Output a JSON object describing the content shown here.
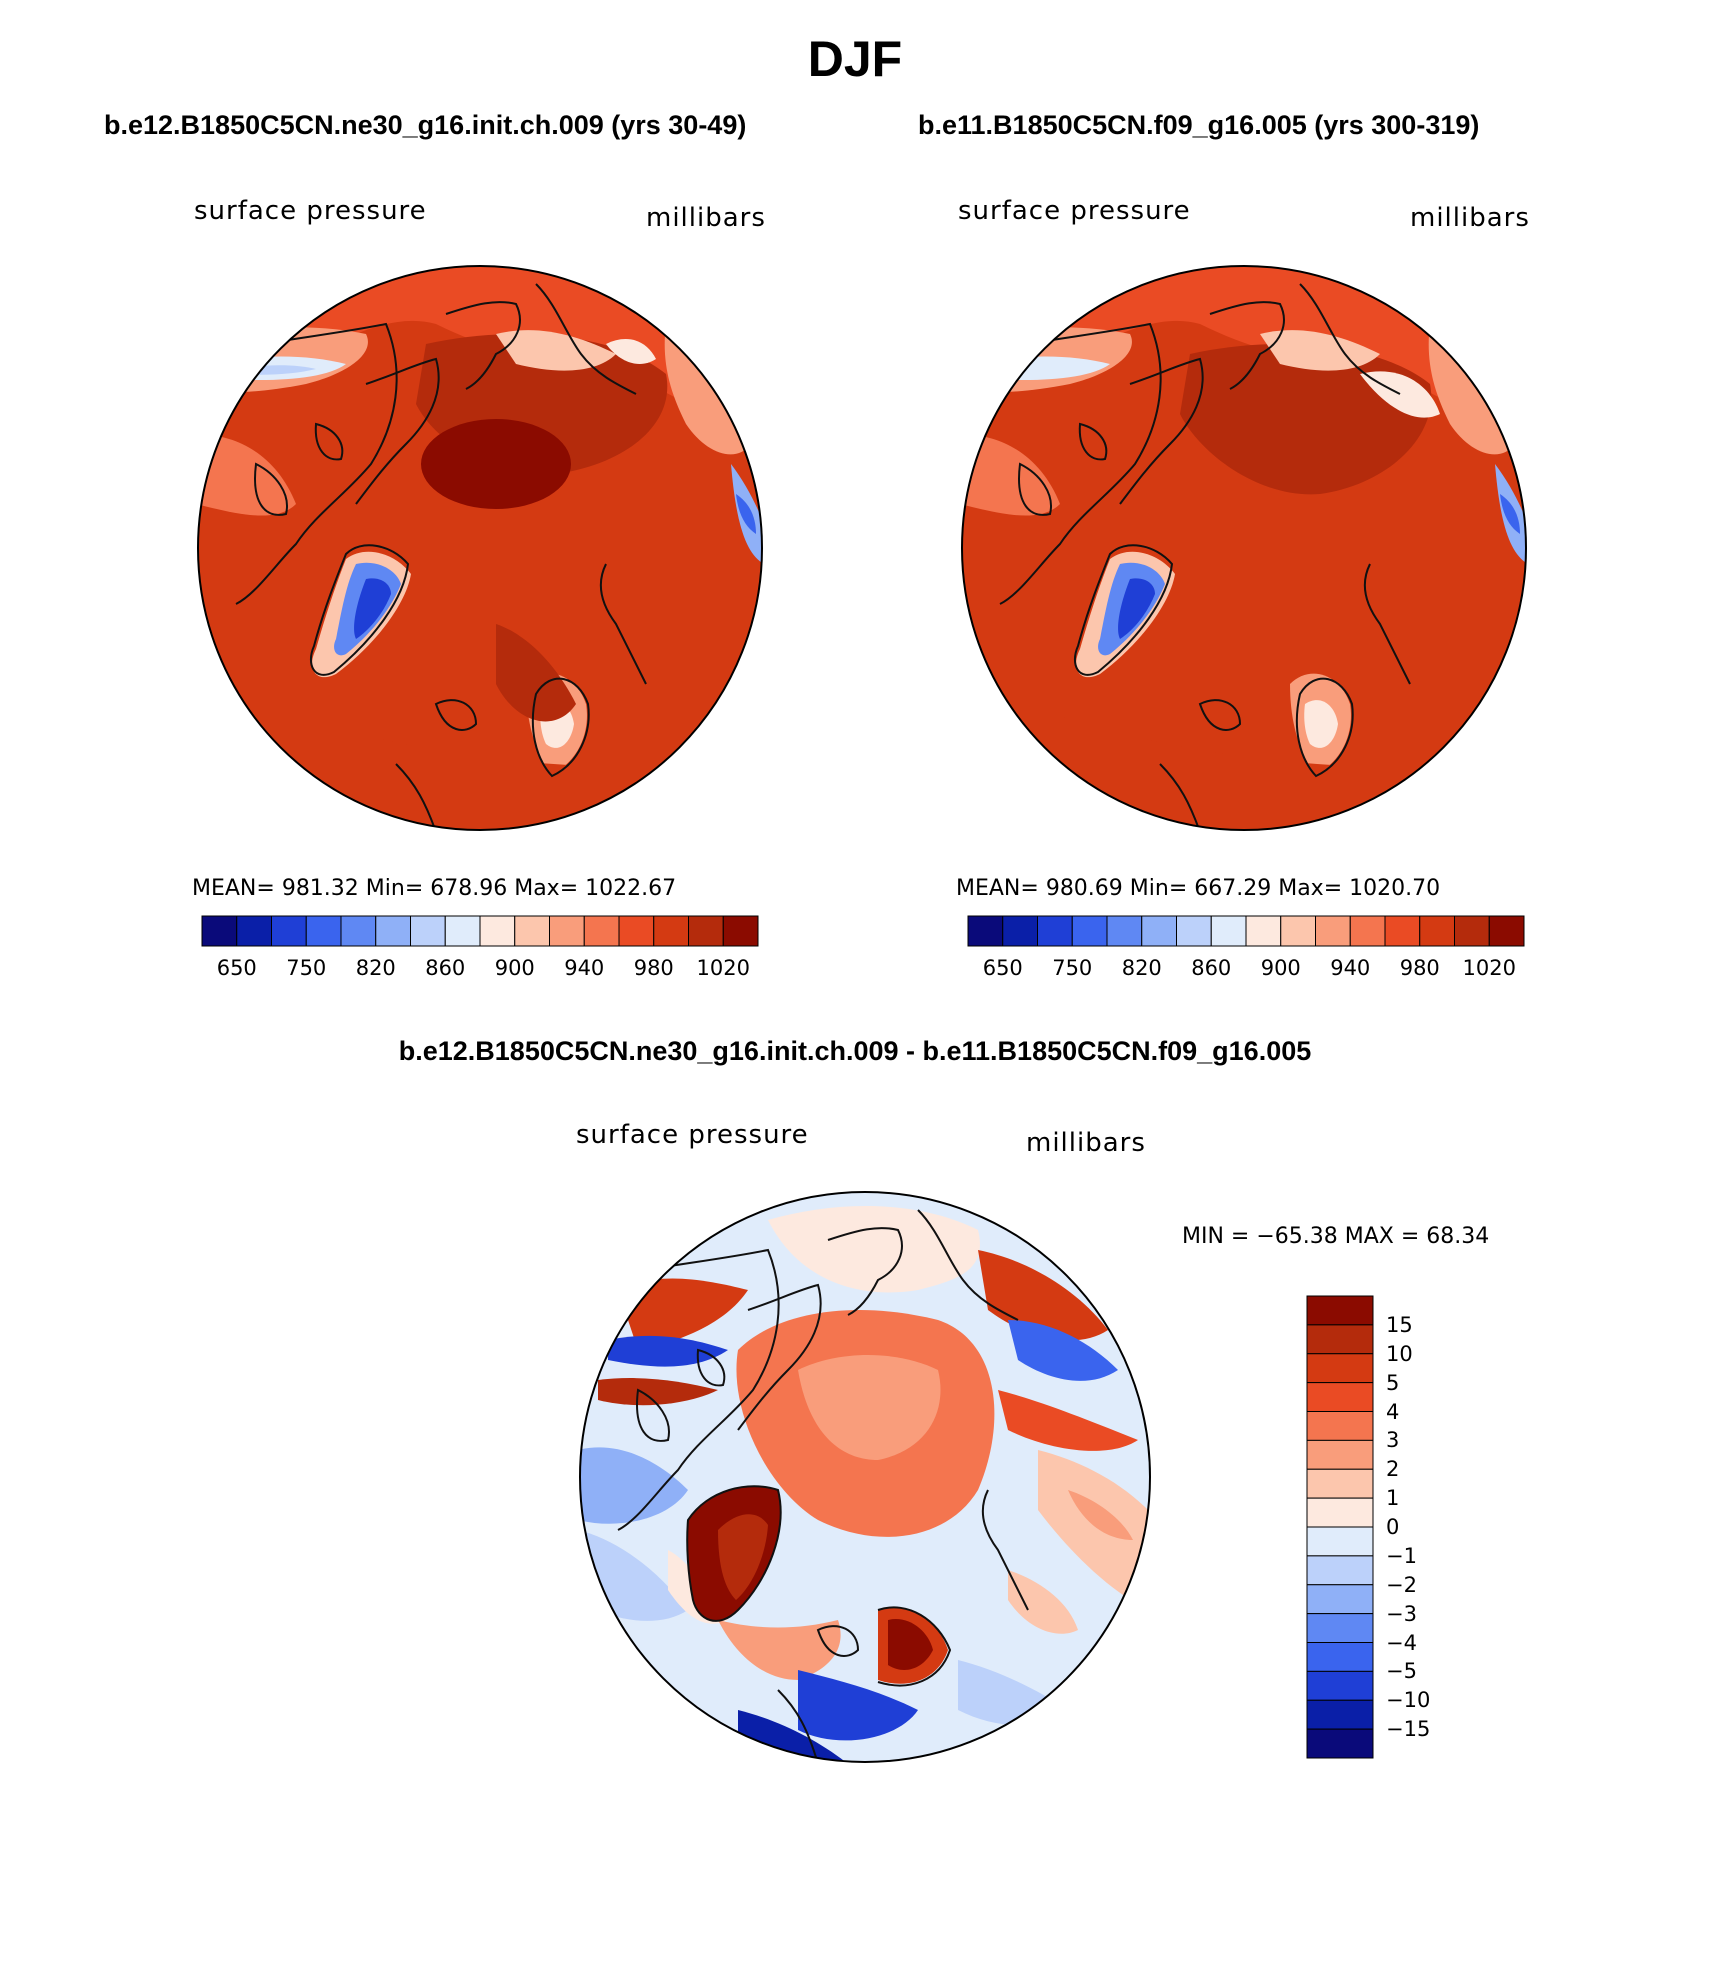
{
  "figure": {
    "title": "DJF",
    "diff_title": "b.e12.B1850C5CN.ne30_g16.init.ch.009 - b.e11.B1850C5CN.f09_g16.005"
  },
  "panels": [
    {
      "case": "b.e12.B1850C5CN.ne30_g16.init.ch.009 (yrs 30-49)",
      "variable": "surface pressure",
      "units": "millibars",
      "stats": {
        "mean": "981.32",
        "min": "678.96",
        "max": "1022.67"
      },
      "stats_text": "MEAN= 981.32   Min= 678.96   Max= 1022.67"
    },
    {
      "case": "b.e11.B1850C5CN.f09_g16.005 (yrs 300-319)",
      "variable": "surface pressure",
      "units": "millibars",
      "stats": {
        "mean": "980.69",
        "min": "667.29",
        "max": "1020.70"
      },
      "stats_text": "MEAN= 980.69   Min= 667.29   Max= 1020.70"
    }
  ],
  "diff_panel": {
    "variable": "surface pressure",
    "units": "millibars",
    "stats": {
      "min": "-65.38",
      "max": "68.34"
    },
    "stats_text": "MIN = −65.38 MAX =   68.34"
  },
  "chart_data": [
    {
      "type": "heatmap",
      "projection": "north-polar-stereographic",
      "title": "b.e12.B1850C5CN.ne30_g16.init.ch.009 (yrs 30-49)",
      "field": "surface pressure",
      "units": "millibars",
      "mean": 981.32,
      "min": 678.96,
      "max": 1022.67,
      "levels": [
        650,
        700,
        750,
        800,
        820,
        840,
        860,
        880,
        900,
        920,
        940,
        960,
        980,
        1000,
        1020
      ],
      "colorbar_tick_labels": [
        "650",
        "750",
        "820",
        "860",
        "900",
        "940",
        "980",
        "1020"
      ],
      "colors": [
        "#0a0a7a",
        "#0a1fa8",
        "#1f3fd6",
        "#3a64ee",
        "#5f88f3",
        "#8fb0f7",
        "#bcd1fa",
        "#e0ecfb",
        "#fde9df",
        "#fcc6ad",
        "#f99d7b",
        "#f4754f",
        "#ea4b24",
        "#d43a12",
        "#b42b0c",
        "#8b0b00"
      ]
    },
    {
      "type": "heatmap",
      "projection": "north-polar-stereographic",
      "title": "b.e11.B1850C5CN.f09_g16.005 (yrs 300-319)",
      "field": "surface pressure",
      "units": "millibars",
      "mean": 980.69,
      "min": 667.29,
      "max": 1020.7,
      "levels": [
        650,
        700,
        750,
        800,
        820,
        840,
        860,
        880,
        900,
        920,
        940,
        960,
        980,
        1000,
        1020
      ],
      "colorbar_tick_labels": [
        "650",
        "750",
        "820",
        "860",
        "900",
        "940",
        "980",
        "1020"
      ],
      "colors": [
        "#0a0a7a",
        "#0a1fa8",
        "#1f3fd6",
        "#3a64ee",
        "#5f88f3",
        "#8fb0f7",
        "#bcd1fa",
        "#e0ecfb",
        "#fde9df",
        "#fcc6ad",
        "#f99d7b",
        "#f4754f",
        "#ea4b24",
        "#d43a12",
        "#b42b0c",
        "#8b0b00"
      ]
    },
    {
      "type": "heatmap",
      "projection": "north-polar-stereographic",
      "title": "b.e12.B1850C5CN.ne30_g16.init.ch.009 - b.e11.B1850C5CN.f09_g16.005",
      "field": "surface pressure difference",
      "units": "millibars",
      "min": -65.38,
      "max": 68.34,
      "levels": [
        -15,
        -10,
        -5,
        -4,
        -3,
        -2,
        -1,
        0,
        1,
        2,
        3,
        4,
        5,
        10,
        15
      ],
      "colorbar_tick_labels": [
        "15",
        "10",
        "5",
        "4",
        "3",
        "2",
        "1",
        "0",
        "−1",
        "−2",
        "−3",
        "−4",
        "−5",
        "−10",
        "−15"
      ],
      "colors_top_to_bottom": [
        "#8b0b00",
        "#b42b0c",
        "#d43a12",
        "#ea4b24",
        "#f4754f",
        "#f99d7b",
        "#fcc6ad",
        "#fde9df",
        "#e0ecfb",
        "#bcd1fa",
        "#8fb0f7",
        "#5f88f3",
        "#3a64ee",
        "#1f3fd6",
        "#0a1fa8",
        "#0a0a7a"
      ]
    }
  ]
}
